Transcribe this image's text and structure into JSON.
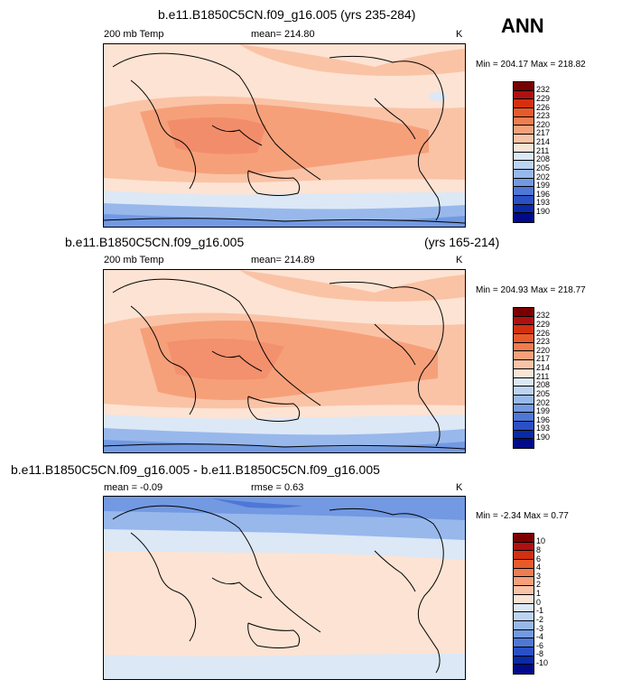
{
  "season": "ANN",
  "panels": [
    {
      "title": "b.e11.B1850C5CN.f09_g16.005 (yrs 235-284)",
      "left_label": "200 mb Temp",
      "center_label": "mean= 214.80",
      "units": "K",
      "minmax": "Min = 204.17 Max = 218.82"
    },
    {
      "title": "b.e11.B1850C5CN.f09_g16.005",
      "title_right": "(yrs 165-214)",
      "left_label": "200 mb Temp",
      "center_label": "mean= 214.89",
      "units": "K",
      "minmax": "Min = 204.93 Max = 218.77"
    },
    {
      "title": "b.e11.B1850C5CN.f09_g16.005 - b.e11.B1850C5CN.f09_g16.005",
      "left_label": "mean =  -0.09",
      "center_label": "rmse =   0.63",
      "units": "K",
      "minmax": "Min =  -2.34 Max =   0.77"
    }
  ],
  "colorbar_abs": {
    "labels": [
      "232",
      "229",
      "226",
      "223",
      "220",
      "217",
      "214",
      "211",
      "208",
      "205",
      "202",
      "199",
      "196",
      "193",
      "190"
    ],
    "colors": [
      "#7a0000",
      "#b01010",
      "#d33010",
      "#e85a2a",
      "#f07d50",
      "#f6a07a",
      "#fac3a6",
      "#fde3d3",
      "#dce8f6",
      "#bcd3f2",
      "#98b8ec",
      "#7299e2",
      "#4f77d6",
      "#2b50c4",
      "#0a2aa6",
      "#000a8a"
    ]
  },
  "colorbar_diff": {
    "labels": [
      "10",
      "8",
      "6",
      "4",
      "3",
      "2",
      "1",
      "0",
      "-1",
      "-2",
      "-3",
      "-4",
      "-6",
      "-8",
      "-10"
    ],
    "colors": [
      "#7a0000",
      "#b01010",
      "#d33010",
      "#e85a2a",
      "#f07d50",
      "#f6a07a",
      "#fac3a6",
      "#fde3d3",
      "#dce8f6",
      "#bcd3f2",
      "#98b8ec",
      "#7299e2",
      "#4f77d6",
      "#2b50c4",
      "#0a2aa6",
      "#000a8a"
    ]
  }
}
